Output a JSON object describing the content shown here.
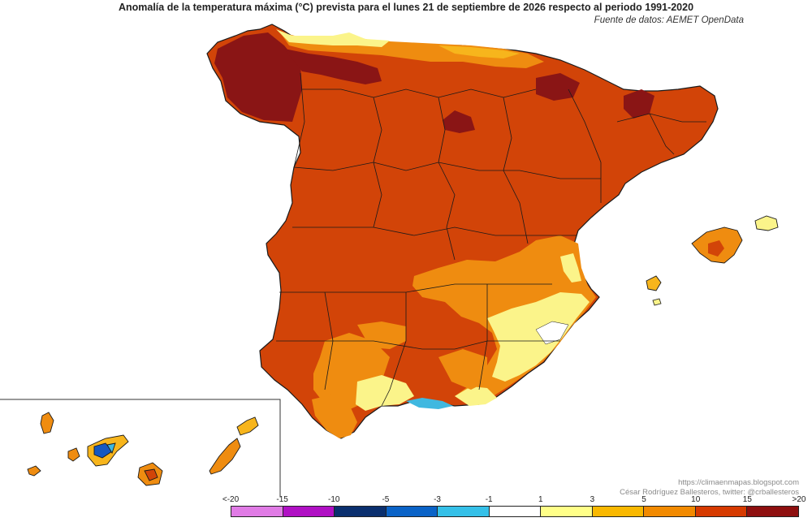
{
  "title": "Anomalía de la temperatura máxima (°C) prevista para el lunes 21 de septiembre de 2026 respecto al periodo 1991-2020",
  "source": "Fuente de datos: AEMET OpenData",
  "credit": {
    "url": "https://climaenmapas.blogspot.com",
    "author": "César Rodríguez Ballesteros, twitter: @crballesteros"
  },
  "legend": {
    "ticks": [
      "<-20",
      "-15",
      "-10",
      "-5",
      "-3",
      "-1",
      "1",
      "3",
      "5",
      "10",
      "15",
      ">20"
    ],
    "colors": [
      "#e07be5",
      "#b010c4",
      "#0a2f6e",
      "#0a63c7",
      "#35c0e8",
      "#ffffff",
      "#ffff88",
      "#f9b800",
      "#f28a00",
      "#d63a00",
      "#8e0f0f"
    ]
  },
  "map_colors": {
    "anom_1_3": "#fbf48a",
    "anom_3_5": "#f7b51c",
    "anom_5_10": "#ef8c10",
    "anom_10_15": "#d24408",
    "anom_15_20": "#8a1515",
    "anom_neg": "#3fb8e0",
    "anom_neg_strong": "#1558c0"
  }
}
